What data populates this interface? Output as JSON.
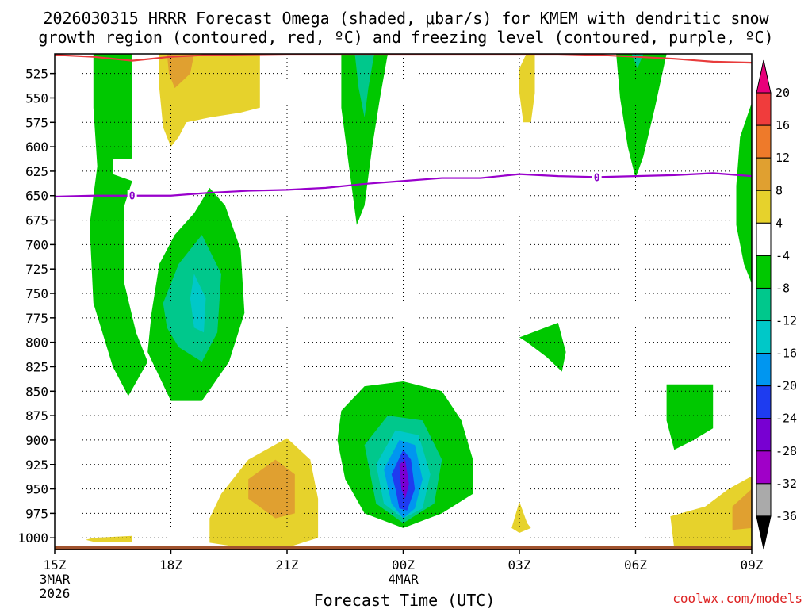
{
  "chart_data": {
    "type": "heatmap",
    "title_line1": "2026030315 HRRR Forecast Omega (shaded, μbar/s) for KMEM with dendritic snow",
    "title_line2": "growth region (contoured, red, ºC) and freezing level (contoured, purple, ºC)",
    "xlabel": "Forecast Time (UTC)",
    "ylabel": "",
    "credit": "coolwx.com/models",
    "x_ticks": [
      {
        "hour": 0,
        "label": "15Z",
        "sub1": "3MAR",
        "sub2": "2026"
      },
      {
        "hour": 3,
        "label": "18Z",
        "sub1": "",
        "sub2": ""
      },
      {
        "hour": 6,
        "label": "21Z",
        "sub1": "",
        "sub2": ""
      },
      {
        "hour": 9,
        "label": "00Z",
        "sub1": "4MAR",
        "sub2": ""
      },
      {
        "hour": 12,
        "label": "03Z",
        "sub1": "",
        "sub2": ""
      },
      {
        "hour": 15,
        "label": "06Z",
        "sub1": "",
        "sub2": ""
      },
      {
        "hour": 18,
        "label": "09Z",
        "sub1": "",
        "sub2": ""
      }
    ],
    "xlim": [
      0,
      18
    ],
    "y_ticks": [
      525,
      550,
      575,
      600,
      625,
      650,
      675,
      700,
      725,
      750,
      775,
      800,
      825,
      850,
      875,
      900,
      925,
      950,
      975,
      1000
    ],
    "ylim": [
      1012,
      505
    ],
    "colorbar": {
      "tick_labels": [
        "20",
        "16",
        "12",
        "8",
        "4",
        "-4",
        "-8",
        "-12",
        "-16",
        "-20",
        "-24",
        "-28",
        "-32",
        "-36"
      ],
      "colors": [
        "#e8007a",
        "#f03c3c",
        "#ee7a2a",
        "#e0a030",
        "#e6d22c",
        "#ffffff",
        "#00c800",
        "#00c88c",
        "#00c8c8",
        "#0096f0",
        "#1e3cf0",
        "#7800d2",
        "#a000c8",
        "#aaaaaa",
        "#000000"
      ]
    },
    "freezing_level": {
      "label": "0",
      "color": "#9900cc",
      "points": [
        [
          0,
          651
        ],
        [
          1,
          650
        ],
        [
          2,
          650
        ],
        [
          3,
          650
        ],
        [
          4,
          647
        ],
        [
          5,
          645
        ],
        [
          6,
          644
        ],
        [
          7,
          642
        ],
        [
          8,
          638
        ],
        [
          9,
          635
        ],
        [
          10,
          632
        ],
        [
          11,
          632
        ],
        [
          12,
          628
        ],
        [
          13,
          630
        ],
        [
          14,
          631
        ],
        [
          15,
          630
        ],
        [
          16,
          629
        ],
        [
          17,
          627
        ],
        [
          18,
          630
        ]
      ],
      "label_hours": [
        2,
        14
      ]
    },
    "dgz_contour": {
      "color": "#e83c3c",
      "points": [
        [
          0,
          506
        ],
        [
          1,
          508
        ],
        [
          2,
          512
        ],
        [
          3,
          508
        ],
        [
          4,
          506
        ],
        [
          6,
          505
        ],
        [
          8,
          505
        ],
        [
          10,
          505
        ],
        [
          12,
          505
        ],
        [
          13,
          505
        ],
        [
          14,
          506
        ],
        [
          15,
          508
        ],
        [
          16,
          510
        ],
        [
          17,
          513
        ],
        [
          18,
          514
        ]
      ]
    },
    "terrain_color": "#a0522d",
    "omega_regions": [
      {
        "value": -6,
        "color": "#00c800",
        "points": [
          [
            1,
            505
          ],
          [
            2,
            505
          ],
          [
            2,
            612
          ],
          [
            1.5,
            613
          ],
          [
            1.5,
            628
          ],
          [
            2,
            635
          ],
          [
            1.8,
            660
          ],
          [
            1.8,
            740
          ],
          [
            2.1,
            790
          ],
          [
            2.4,
            820
          ],
          [
            1.9,
            855
          ],
          [
            1.5,
            825
          ],
          [
            1,
            760
          ],
          [
            0.9,
            680
          ],
          [
            1.1,
            620
          ],
          [
            1,
            560
          ]
        ]
      },
      {
        "value": -6,
        "color": "#00c800",
        "points": [
          [
            2.4,
            810
          ],
          [
            2.5,
            770
          ],
          [
            2.7,
            720
          ],
          [
            3.1,
            690
          ],
          [
            3.6,
            668
          ],
          [
            4,
            642
          ],
          [
            4.4,
            660
          ],
          [
            4.8,
            705
          ],
          [
            4.9,
            770
          ],
          [
            4.5,
            820
          ],
          [
            3.8,
            860
          ],
          [
            3,
            860
          ]
        ]
      },
      {
        "value": -10,
        "color": "#00c88c",
        "points": [
          [
            2.8,
            760
          ],
          [
            3.2,
            720
          ],
          [
            3.8,
            690
          ],
          [
            4.3,
            730
          ],
          [
            4.2,
            790
          ],
          [
            3.8,
            820
          ],
          [
            3.2,
            805
          ],
          [
            2.9,
            785
          ]
        ]
      },
      {
        "value": -14,
        "color": "#00c8c8",
        "points": [
          [
            3.6,
            730
          ],
          [
            3.9,
            755
          ],
          [
            3.85,
            790
          ],
          [
            3.6,
            785
          ],
          [
            3.5,
            755
          ]
        ]
      },
      {
        "value": -6,
        "color": "#00c800",
        "points": [
          [
            7.4,
            505
          ],
          [
            8.6,
            505
          ],
          [
            8.4,
            550
          ],
          [
            8.2,
            600
          ],
          [
            8,
            660
          ],
          [
            7.8,
            680
          ],
          [
            7.6,
            620
          ],
          [
            7.4,
            560
          ]
        ]
      },
      {
        "value": -10,
        "color": "#00c88c",
        "points": [
          [
            7.75,
            505
          ],
          [
            8.25,
            505
          ],
          [
            8.1,
            540
          ],
          [
            8,
            570
          ],
          [
            7.85,
            540
          ]
        ]
      },
      {
        "value": -6,
        "color": "#00c800",
        "points": [
          [
            14.5,
            505
          ],
          [
            15.8,
            505
          ],
          [
            15.5,
            560
          ],
          [
            15.2,
            610
          ],
          [
            15,
            632
          ],
          [
            14.8,
            600
          ],
          [
            14.6,
            550
          ]
        ]
      },
      {
        "value": -10,
        "color": "#00c88c",
        "points": [
          [
            14.9,
            505
          ],
          [
            15.2,
            505
          ],
          [
            15.05,
            520
          ]
        ]
      },
      {
        "value": -6,
        "color": "#00c800",
        "points": [
          [
            18,
            555
          ],
          [
            17.7,
            590
          ],
          [
            17.6,
            640
          ],
          [
            17.6,
            680
          ],
          [
            17.8,
            720
          ],
          [
            18,
            740
          ]
        ]
      },
      {
        "value": -6,
        "color": "#00c800",
        "points": [
          [
            12,
            795
          ],
          [
            13,
            780
          ],
          [
            13.2,
            810
          ],
          [
            13.1,
            830
          ],
          [
            12.7,
            815
          ],
          [
            12.2,
            800
          ]
        ]
      },
      {
        "value": -6,
        "color": "#00c800",
        "points": [
          [
            15.8,
            843
          ],
          [
            17,
            843
          ],
          [
            17,
            888
          ],
          [
            16.5,
            900
          ],
          [
            16,
            910
          ],
          [
            15.8,
            880
          ]
        ]
      },
      {
        "value": -6,
        "color": "#00c800",
        "points": [
          [
            7.4,
            870
          ],
          [
            8,
            845
          ],
          [
            9,
            840
          ],
          [
            10,
            850
          ],
          [
            10.5,
            880
          ],
          [
            10.8,
            920
          ],
          [
            10.8,
            955
          ],
          [
            10,
            975
          ],
          [
            9,
            990
          ],
          [
            8,
            975
          ],
          [
            7.5,
            940
          ],
          [
            7.3,
            900
          ]
        ]
      },
      {
        "value": -10,
        "color": "#00c88c",
        "points": [
          [
            8,
            905
          ],
          [
            8.6,
            875
          ],
          [
            9.5,
            880
          ],
          [
            10,
            920
          ],
          [
            9.8,
            965
          ],
          [
            9,
            985
          ],
          [
            8.3,
            965
          ]
        ]
      },
      {
        "value": -14,
        "color": "#00c8c8",
        "points": [
          [
            8.3,
            925
          ],
          [
            8.8,
            890
          ],
          [
            9.4,
            895
          ],
          [
            9.7,
            935
          ],
          [
            9.5,
            970
          ],
          [
            9,
            980
          ],
          [
            8.5,
            965
          ]
        ]
      },
      {
        "value": -18,
        "color": "#0096f0",
        "points": [
          [
            8.5,
            930
          ],
          [
            8.9,
            900
          ],
          [
            9.3,
            905
          ],
          [
            9.5,
            940
          ],
          [
            9.3,
            970
          ],
          [
            9,
            980
          ],
          [
            8.7,
            965
          ]
        ]
      },
      {
        "value": -22,
        "color": "#1e3cf0",
        "points": [
          [
            8.7,
            935
          ],
          [
            9,
            910
          ],
          [
            9.2,
            920
          ],
          [
            9.3,
            950
          ],
          [
            9.1,
            972
          ],
          [
            8.9,
            970
          ],
          [
            8.8,
            950
          ]
        ]
      },
      {
        "value": -26,
        "color": "#7800d2",
        "points": [
          [
            8.9,
            925
          ],
          [
            9.05,
            920
          ],
          [
            9.15,
            945
          ],
          [
            9.05,
            960
          ],
          [
            8.95,
            950
          ]
        ]
      },
      {
        "value": 6,
        "color": "#e6d22c",
        "points": [
          [
            2.7,
            505
          ],
          [
            5.3,
            505
          ],
          [
            5.3,
            560
          ],
          [
            4.8,
            565
          ],
          [
            4,
            570
          ],
          [
            3.4,
            575
          ],
          [
            3.2,
            590
          ],
          [
            3,
            600
          ],
          [
            2.8,
            580
          ],
          [
            2.7,
            540
          ]
        ]
      },
      {
        "value": 10,
        "color": "#e0a030",
        "points": [
          [
            2.9,
            505
          ],
          [
            3.6,
            505
          ],
          [
            3.5,
            525
          ],
          [
            3.1,
            540
          ],
          [
            2.95,
            525
          ]
        ]
      },
      {
        "value": 6,
        "color": "#e6d22c",
        "points": [
          [
            12.2,
            503
          ],
          [
            12.4,
            503
          ],
          [
            12.4,
            545
          ],
          [
            12.3,
            575
          ],
          [
            12.1,
            575
          ],
          [
            12,
            545
          ],
          [
            12,
            520
          ]
        ]
      },
      {
        "value": 6,
        "color": "#e6d22c",
        "points": [
          [
            1,
            1000
          ],
          [
            2,
            998
          ],
          [
            2,
            1004
          ],
          [
            1,
            1004
          ],
          [
            0.8,
            1002
          ]
        ]
      },
      {
        "value": 6,
        "color": "#e6d22c",
        "points": [
          [
            4,
            980
          ],
          [
            4.3,
            955
          ],
          [
            5,
            920
          ],
          [
            6,
            898
          ],
          [
            6.6,
            920
          ],
          [
            6.8,
            960
          ],
          [
            6.8,
            1000
          ],
          [
            6,
            1010
          ],
          [
            5,
            1011
          ],
          [
            4,
            1005
          ]
        ]
      },
      {
        "value": 10,
        "color": "#e0a030",
        "points": [
          [
            5,
            940
          ],
          [
            5.7,
            920
          ],
          [
            6.2,
            935
          ],
          [
            6.2,
            975
          ],
          [
            5.7,
            980
          ],
          [
            5,
            960
          ]
        ]
      },
      {
        "value": 6,
        "color": "#e6d22c",
        "points": [
          [
            12,
            963
          ],
          [
            12.2,
            985
          ],
          [
            12.3,
            990
          ],
          [
            12,
            995
          ],
          [
            11.8,
            990
          ]
        ]
      },
      {
        "value": 6,
        "color": "#e6d22c",
        "points": [
          [
            15.9,
            978
          ],
          [
            16.8,
            968
          ],
          [
            17.4,
            950
          ],
          [
            18,
            937
          ],
          [
            18,
            1011
          ],
          [
            16,
            1011
          ]
        ]
      },
      {
        "value": 10,
        "color": "#e0a030",
        "points": [
          [
            17.5,
            968
          ],
          [
            18,
            950
          ],
          [
            18,
            990
          ],
          [
            17.5,
            992
          ]
        ]
      }
    ]
  }
}
